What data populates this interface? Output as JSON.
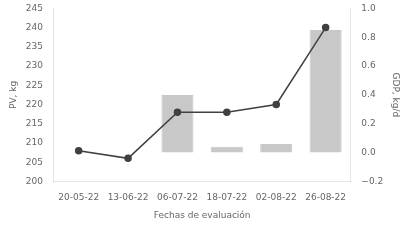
{
  "chart_data": {
    "type": "bar",
    "xlabel": "Fechas de evaluación",
    "ylabel": "PV, kg",
    "y2label": "GDP, kg/d",
    "categories": [
      "20-05-22",
      "13-06-22",
      "06-07-22",
      "18-07-22",
      "02-08-22",
      "26-08-22"
    ],
    "series": [
      {
        "type": "bar",
        "axis": "y2",
        "color": "#c8c8c8",
        "values": [
          0.0,
          0.0,
          0.4,
          0.04,
          0.06,
          0.85
        ]
      },
      {
        "type": "line",
        "color": "#404040",
        "marker": "circle",
        "values": [
          208,
          206,
          218,
          218,
          220,
          240
        ]
      }
    ],
    "ylim": [
      200,
      245
    ],
    "yticks": [
      200,
      205,
      210,
      215,
      220,
      225,
      230,
      235,
      240,
      245
    ],
    "y2lim": [
      -0.2,
      1.0
    ],
    "y2ticks": [
      {
        "value": -0.2,
        "label": "−0.2"
      },
      {
        "value": 0.0,
        "label": "0.0"
      },
      {
        "value": 0.2,
        "label": "0.2"
      },
      {
        "value": 0.4,
        "label": "0.4"
      },
      {
        "value": 0.6,
        "label": "0.6"
      },
      {
        "value": 0.8,
        "label": "0.8"
      },
      {
        "value": 1.0,
        "label": "1.0"
      }
    ],
    "grid": false
  }
}
